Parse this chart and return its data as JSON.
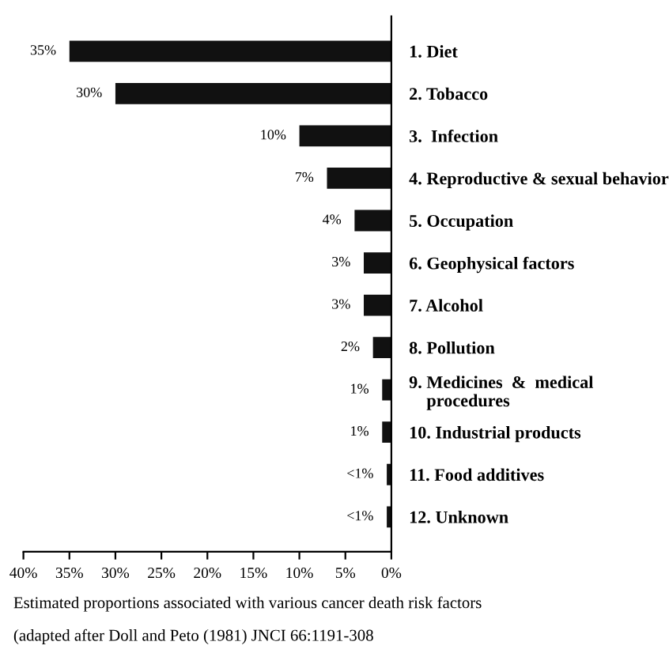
{
  "chart_data": {
    "type": "bar",
    "orientation": "horizontal",
    "categories": [
      "1. Diet",
      "2. Tobacco",
      "3.  Infection",
      "4. Reproductive & sexual behavior",
      "5. Occupation",
      "6. Geophysical factors",
      "7. Alcohol",
      "8. Pollution",
      "9. Medicines  &  medical\n    procedures",
      "10. Industrial products",
      "11. Food additives",
      "12. Unknown"
    ],
    "values": [
      35,
      30,
      10,
      7,
      4,
      3,
      3,
      2,
      1,
      1,
      0.5,
      0.5
    ],
    "value_labels": [
      "35%",
      "30%",
      "10%",
      "7%",
      "4%",
      "3%",
      "3%",
      "2%",
      "1%",
      "1%",
      "<1%",
      "<1%"
    ],
    "color": "#111111",
    "xlim": [
      40,
      0
    ],
    "xticks": [
      {
        "value": 40,
        "label": "40%"
      },
      {
        "value": 35,
        "label": "35%"
      },
      {
        "value": 30,
        "label": "30%"
      },
      {
        "value": 25,
        "label": "25%"
      },
      {
        "value": 20,
        "label": "20%"
      },
      {
        "value": 15,
        "label": "15%"
      },
      {
        "value": 10,
        "label": "10%"
      },
      {
        "value": 5,
        "label": "5%"
      },
      {
        "value": 0,
        "label": "0%"
      }
    ],
    "grid": false,
    "legend": false,
    "annotations": [
      "Estimated proportions associated with various cancer death risk factors",
      "(adapted after Doll and Peto (1981) JNCI 66:1191-308"
    ]
  }
}
